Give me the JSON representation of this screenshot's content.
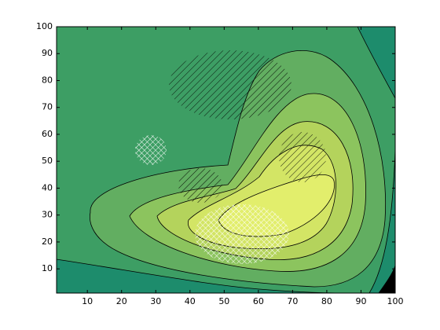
{
  "chart_data": {
    "type": "contour",
    "xlim": [
      1,
      100
    ],
    "ylim": [
      1,
      100
    ],
    "xticks": [
      10,
      20,
      30,
      40,
      50,
      60,
      70,
      80,
      90,
      100
    ],
    "yticks": [
      10,
      20,
      30,
      40,
      50,
      60,
      70,
      80,
      90,
      100
    ]
  }
}
